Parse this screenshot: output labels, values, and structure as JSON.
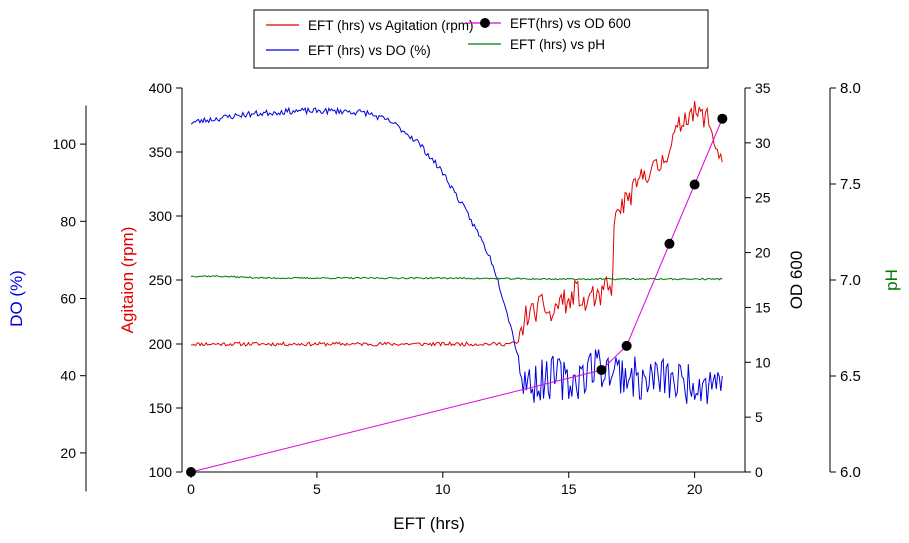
{
  "chart_data": {
    "type": "line",
    "xlabel": "EFT (hrs)",
    "xlim": [
      0,
      22
    ],
    "xticks": [
      0,
      5,
      10,
      15,
      20
    ],
    "legend_placement": "top-center",
    "axes": {
      "agitation": {
        "label": "Agitaion (rpm)",
        "color": "#e00000",
        "range": [
          100,
          400
        ],
        "ticks": [
          100,
          150,
          200,
          250,
          300,
          350,
          400
        ]
      },
      "od": {
        "label": "OD 600",
        "color": "#000000",
        "range": [
          0,
          35
        ],
        "ticks": [
          0,
          5,
          10,
          15,
          20,
          25,
          30,
          35
        ]
      },
      "do": {
        "label": "DO (%)",
        "color": "#0000dd",
        "range": [
          10,
          110
        ],
        "ticks": [
          20,
          40,
          60,
          80,
          100
        ]
      },
      "ph": {
        "label": "pH",
        "color": "#007a00",
        "range": [
          6.0,
          8.0
        ],
        "ticks": [
          "6.0",
          "6.5",
          "7.0",
          "7.5",
          "8.0"
        ]
      }
    },
    "series": [
      {
        "name": "EFT (hrs) vs Agitation (rpm)",
        "axis": "agitation",
        "color": "#e00000",
        "noise": 1.5,
        "seed": 11,
        "points": [
          [
            0,
            200
          ],
          [
            12.5,
            200
          ],
          [
            13.0,
            201
          ],
          [
            13.3,
            222
          ],
          [
            13.7,
            226
          ],
          [
            14.0,
            232
          ],
          [
            14.3,
            220
          ],
          [
            14.7,
            236
          ],
          [
            15.0,
            230
          ],
          [
            15.3,
            244
          ],
          [
            15.6,
            228
          ],
          [
            15.9,
            240
          ],
          [
            16.2,
            232
          ],
          [
            16.5,
            247
          ],
          [
            16.7,
            236
          ],
          [
            16.8,
            292
          ],
          [
            17.0,
            305
          ],
          [
            17.3,
            312
          ],
          [
            17.7,
            323
          ],
          [
            18.0,
            334
          ],
          [
            18.3,
            336
          ],
          [
            18.6,
            338
          ],
          [
            18.9,
            350
          ],
          [
            19.2,
            362
          ],
          [
            19.5,
            374
          ],
          [
            19.8,
            382
          ],
          [
            20.0,
            381
          ],
          [
            20.3,
            378
          ],
          [
            20.5,
            377
          ],
          [
            20.7,
            365
          ],
          [
            20.9,
            352
          ],
          [
            21.1,
            342
          ]
        ]
      },
      {
        "name": "EFT (hrs) vs DO (%)",
        "axis": "do",
        "color": "#0000dd",
        "noise": 0.8,
        "seed": 23,
        "points": [
          [
            0,
            101
          ],
          [
            1,
            102
          ],
          [
            2,
            103
          ],
          [
            3,
            103.5
          ],
          [
            4,
            104
          ],
          [
            5,
            104
          ],
          [
            6,
            104
          ],
          [
            7,
            103.5
          ],
          [
            8,
            101
          ],
          [
            9,
            96
          ],
          [
            10,
            88
          ],
          [
            11,
            77
          ],
          [
            11.5,
            71
          ],
          [
            12,
            64
          ],
          [
            12.5,
            53
          ],
          [
            13.0,
            40
          ],
          [
            13.2,
            34
          ],
          [
            13.5,
            33
          ],
          [
            14,
            34
          ],
          [
            14.5,
            35
          ],
          [
            15,
            33
          ],
          [
            15.5,
            35
          ],
          [
            16,
            38
          ],
          [
            16.5,
            37
          ],
          [
            17,
            36
          ],
          [
            17.5,
            35
          ],
          [
            18,
            33
          ],
          [
            18.5,
            35
          ],
          [
            19,
            34
          ],
          [
            19.5,
            33
          ],
          [
            20,
            34
          ],
          [
            20.5,
            33
          ],
          [
            21.1,
            35
          ]
        ]
      },
      {
        "name": "EFT(hrs) vs OD 600",
        "axis": "od",
        "color": "#e000e0",
        "markers": true,
        "points": [
          [
            0,
            0
          ],
          [
            16.3,
            9.3
          ],
          [
            17.3,
            11.5
          ],
          [
            19.0,
            20.8
          ],
          [
            20.0,
            26.2
          ],
          [
            21.1,
            32.2
          ]
        ]
      },
      {
        "name": "EFT (hrs) vs pH",
        "axis": "ph",
        "color": "#007a00",
        "noise": 0.004,
        "seed": 37,
        "points": [
          [
            0,
            7.02
          ],
          [
            1,
            7.02
          ],
          [
            3,
            7.01
          ],
          [
            6,
            7.01
          ],
          [
            10,
            7.01
          ],
          [
            14,
            7.005
          ],
          [
            18,
            7.005
          ],
          [
            21.1,
            7.005
          ]
        ]
      }
    ]
  }
}
